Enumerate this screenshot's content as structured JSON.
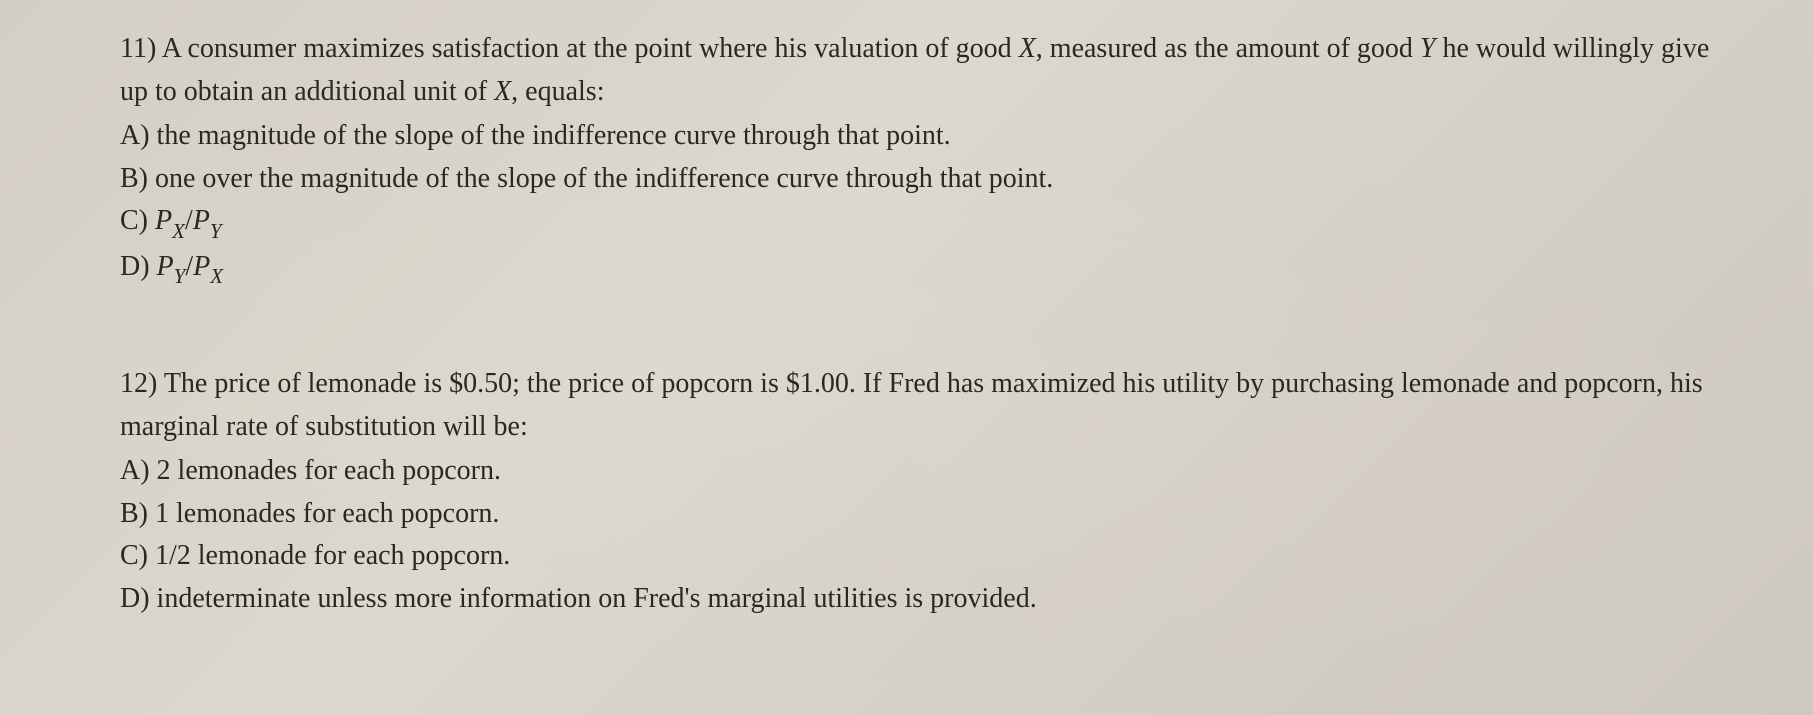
{
  "q11": {
    "number": "11)",
    "stem_part1": "A consumer maximizes satisfaction at the point where his valuation of good ",
    "stem_goodX": "X",
    "stem_part2": ", measured as the amount of good ",
    "stem_goodY": "Y",
    "stem_part3": " he would willingly give up to obtain an additional unit of ",
    "stem_goodX2": "X",
    "stem_part4": ", equals:",
    "optA_label": "A)",
    "optA_text": " the magnitude of the slope of the indifference curve through that point.",
    "optB_label": "B)",
    "optB_text": " one over the magnitude of the slope of the indifference curve through that point.",
    "optC_label": "C) ",
    "optC_P1": "P",
    "optC_sub1": "X",
    "optC_slash": "/",
    "optC_P2": "P",
    "optC_sub2": "Y",
    "optD_label": "D) ",
    "optD_P1": "P",
    "optD_sub1": "Y",
    "optD_slash": "/",
    "optD_P2": "P",
    "optD_sub2": "X"
  },
  "q12": {
    "number": "12)",
    "stem": " The price of lemonade is $0.50; the price of popcorn is $1.00.  If Fred has maximized his utility by purchasing lemonade and popcorn, his marginal rate of substitution will be:",
    "optA_label": "A)",
    "optA_text": " 2 lemonades for each popcorn.",
    "optB_label": "B)",
    "optB_text": " 1 lemonades for each popcorn.",
    "optC_label": "C)",
    "optC_text": " 1/2 lemonade for each popcorn.",
    "optD_label": "D)",
    "optD_text": " indeterminate unless more information on Fred's marginal utilities is provided."
  }
}
